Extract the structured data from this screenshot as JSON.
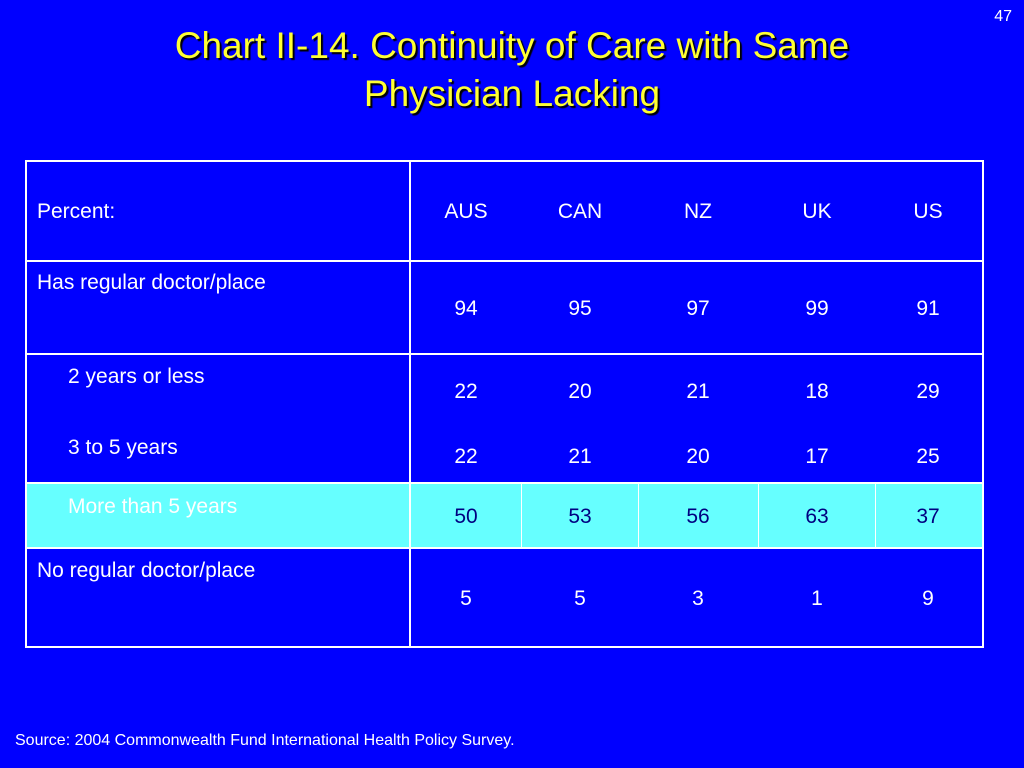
{
  "page_number": "47",
  "title": {
    "line1": "Chart II-14. Continuity of Care with Same",
    "line2": "Physician Lacking"
  },
  "table": {
    "header_label": "Percent:",
    "columns": [
      "AUS",
      "CAN",
      "NZ",
      "UK",
      "US"
    ],
    "rows": [
      {
        "label": "Has regular doctor/place",
        "values": [
          "94",
          "95",
          "97",
          "99",
          "91"
        ]
      },
      {
        "label": "2 years or less",
        "values": [
          "22",
          "20",
          "21",
          "18",
          "29"
        ]
      },
      {
        "label": "3 to 5 years",
        "values": [
          "22",
          "21",
          "20",
          "17",
          "25"
        ]
      },
      {
        "label": "More than 5 years",
        "values": [
          "50",
          "53",
          "56",
          "63",
          "37"
        ]
      },
      {
        "label": "No regular doctor/place",
        "values": [
          "5",
          "5",
          "3",
          "1",
          "9"
        ]
      }
    ]
  },
  "highlight_color": "#66FFFF",
  "background_color": "#0000FF",
  "title_color": "#FFFF33",
  "source": "Source: 2004 Commonwealth Fund International Health Policy Survey."
}
